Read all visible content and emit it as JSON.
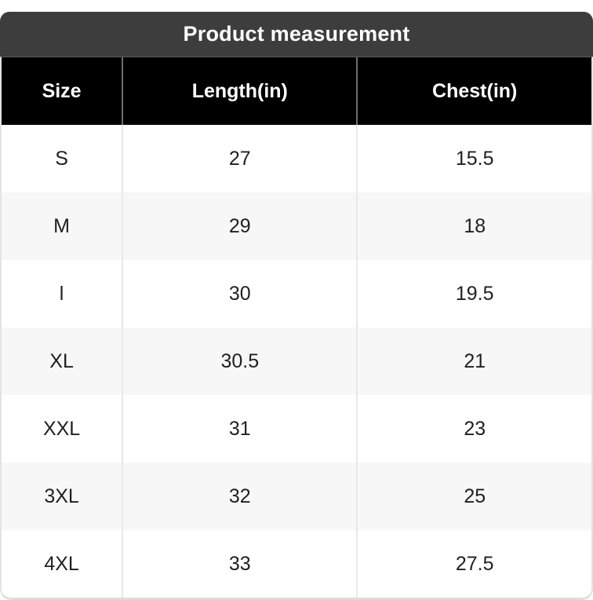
{
  "title": "Product measurement",
  "colors": {
    "title_bar_bg": "#3d3d3d",
    "header_bg": "#000000",
    "header_text": "#ffffff",
    "row_bg": "#ffffff",
    "row_alt_bg": "#f7f7f7",
    "body_text": "#1f1f1f",
    "body_divider": "#e8e8e8",
    "header_divider": "#6e6e6e"
  },
  "chart_data": {
    "type": "table",
    "title": "Product measurement",
    "columns": [
      "Size",
      "Length(in)",
      "Chest(in)"
    ],
    "rows": [
      [
        "S",
        "27",
        "15.5"
      ],
      [
        "M",
        "29",
        "18"
      ],
      [
        "l",
        "30",
        "19.5"
      ],
      [
        "XL",
        "30.5",
        "21"
      ],
      [
        "XXL",
        "31",
        "23"
      ],
      [
        "3XL",
        "32",
        "25"
      ],
      [
        "4XL",
        "33",
        "27.5"
      ]
    ]
  }
}
